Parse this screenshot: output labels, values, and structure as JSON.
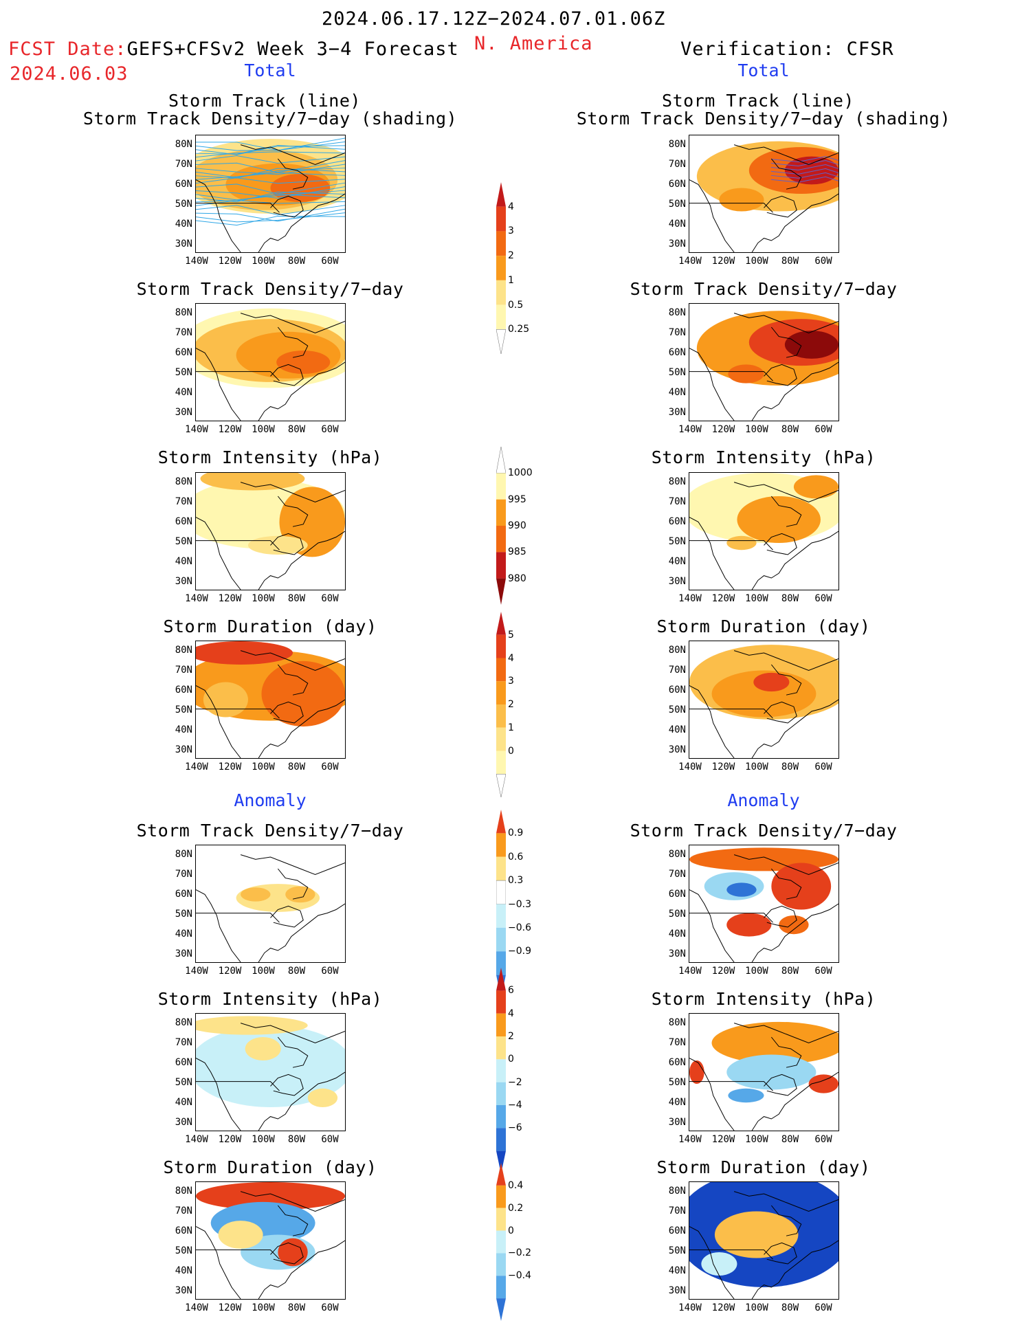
{
  "header": {
    "date_range": "2024.06.17.12Z−2024.07.01.06Z",
    "fcst_date_label": "FCST Date:",
    "fcst_product": "GEFS+CFSv2 Week 3−4 Forecast",
    "fcst_date": "2024.06.03",
    "region": "N. America",
    "verification": "Verification: CFSR"
  },
  "sections": {
    "total": "Total",
    "anomaly": "Anomaly"
  },
  "panel_titles": {
    "track_line": "Storm Track (line)",
    "track_shading": "Storm Track Density/7−day (shading)",
    "density": "Storm Track Density/7−day",
    "intensity": "Storm Intensity (hPa)",
    "duration": "Storm Duration (day)"
  },
  "axes": {
    "lat_labels": [
      "80N",
      "70N",
      "60N",
      "50N",
      "40N",
      "30N"
    ],
    "lon_labels": [
      "140W",
      "120W",
      "100W",
      "80W",
      "60W"
    ]
  },
  "colorbars": {
    "density": [
      "4",
      "3",
      "2",
      "1",
      "0.5",
      "0.25"
    ],
    "intensity": [
      "1000",
      "995",
      "990",
      "985",
      "980"
    ],
    "duration": [
      "5",
      "4",
      "3",
      "2",
      "1",
      "0"
    ],
    "density_anom": [
      "0.9",
      "0.6",
      "0.3",
      "−0.3",
      "−0.6",
      "−0.9"
    ],
    "intensity_anom": [
      "6",
      "4",
      "2",
      "0",
      "−2",
      "−4",
      "−6"
    ],
    "duration_anom": [
      "0.4",
      "0.2",
      "0",
      "−0.2",
      "−0.4"
    ]
  },
  "colors": {
    "warm": [
      "#fff7b0",
      "#fde38a",
      "#fbbe4a",
      "#f99a1c",
      "#f26a12",
      "#e5401b",
      "#c21a1a",
      "#8c0a0a"
    ],
    "cool": [
      "#c8f0f8",
      "#9ad8f2",
      "#56a8e8",
      "#2e73d6",
      "#1546c2"
    ],
    "track_line": "#2ea6e6"
  }
}
